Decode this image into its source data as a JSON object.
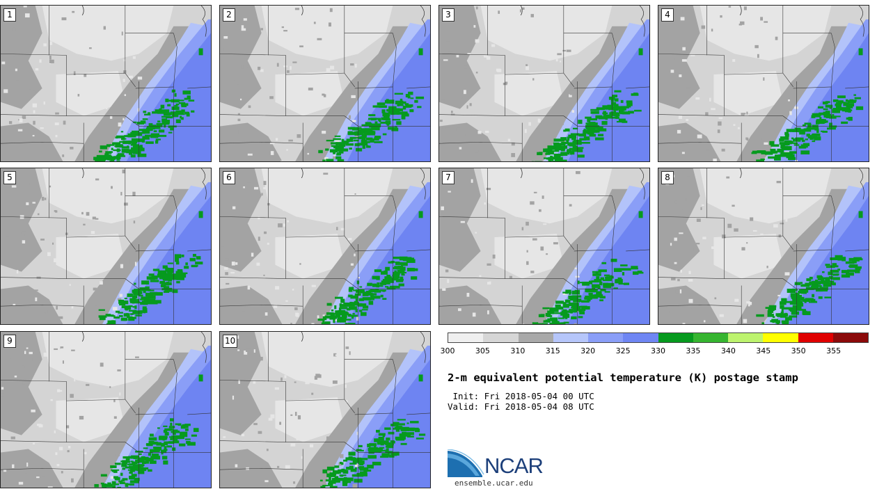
{
  "panels": [
    {
      "label": "1"
    },
    {
      "label": "2"
    },
    {
      "label": "3"
    },
    {
      "label": "4"
    },
    {
      "label": "5"
    },
    {
      "label": "6"
    },
    {
      "label": "7"
    },
    {
      "label": "8"
    },
    {
      "label": "9"
    },
    {
      "label": "10"
    }
  ],
  "colorbar": {
    "ticks": [
      "300",
      "305",
      "310",
      "315",
      "320",
      "325",
      "330",
      "335",
      "340",
      "345",
      "350",
      "355"
    ],
    "colors": [
      "#efefef",
      "#d6d6d6",
      "#a9a9a9",
      "#b6c6fa",
      "#8a9ef7",
      "#6f86f3",
      "#069a1e",
      "#36b530",
      "#bdf36e",
      "#ffff00",
      "#e00000",
      "#8b0a0a"
    ]
  },
  "map_colors": {
    "lightest": "#e6e6e6",
    "light": "#d4d4d4",
    "mid": "#a3a3a3",
    "pale_blue": "#b3c3fa",
    "blue": "#8a9ef7",
    "deep_blue": "#6e84f2",
    "green": "#069a1e",
    "boundary": "#333333"
  },
  "text": {
    "title": "2-m equivalent potential temperature (K) postage stamp",
    "init": " Init: Fri 2018-05-04 00 UTC",
    "valid": "Valid: Fri 2018-05-04 08 UTC",
    "logo": "NCAR",
    "site": "ensemble.ucar.edu"
  }
}
